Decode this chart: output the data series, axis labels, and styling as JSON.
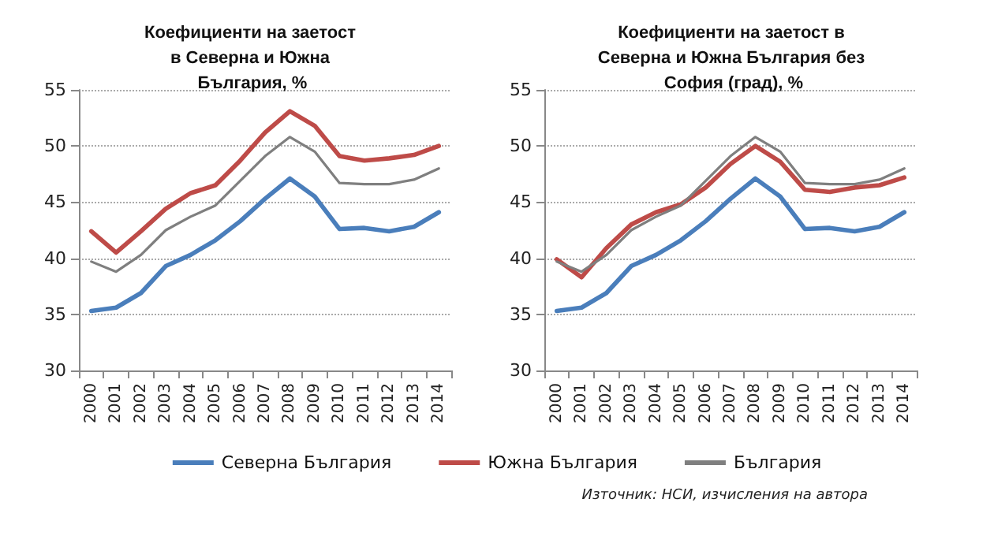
{
  "chart_data": [
    {
      "type": "line",
      "title": "Коефициенти на заетост в Северна и Южна България, %",
      "categories": [
        "2000",
        "2001",
        "2002",
        "2003",
        "2004",
        "2005",
        "2006",
        "2007",
        "2008",
        "2009",
        "2010",
        "2011",
        "2012",
        "2013",
        "2014"
      ],
      "ylim": [
        30,
        55
      ],
      "yticks": [
        30,
        35,
        40,
        45,
        50,
        55
      ],
      "grid": "y",
      "legend": "bottom",
      "marker": "none",
      "annotations": [
        "Източник: НСИ, изчисления на автора"
      ],
      "series": [
        {
          "name": "Северна България",
          "color": "#4a7ebb",
          "values": [
            35.3,
            35.6,
            36.9,
            39.3,
            40.3,
            41.6,
            43.3,
            45.3,
            47.1,
            45.5,
            42.6,
            42.7,
            42.4,
            42.8,
            44.1
          ]
        },
        {
          "name": "Южна България",
          "color": "#be4b48",
          "values": [
            42.4,
            40.5,
            42.4,
            44.4,
            45.8,
            46.5,
            48.7,
            51.2,
            53.1,
            51.8,
            49.1,
            48.7,
            48.9,
            49.2,
            50.0
          ]
        },
        {
          "name": "България",
          "color": "#7f7f7f",
          "values": [
            39.7,
            38.8,
            40.3,
            42.5,
            43.7,
            44.7,
            46.9,
            49.1,
            50.8,
            49.5,
            46.7,
            46.6,
            46.6,
            47.0,
            48.0
          ]
        }
      ]
    },
    {
      "type": "line",
      "title": "Коефициенти на заетост в Северна и Южна България без София (град), %",
      "categories": [
        "2000",
        "2001",
        "2002",
        "2003",
        "2004",
        "2005",
        "2006",
        "2007",
        "2008",
        "2009",
        "2010",
        "2011",
        "2012",
        "2013",
        "2014"
      ],
      "ylim": [
        30,
        55
      ],
      "yticks": [
        30,
        35,
        40,
        45,
        50,
        55
      ],
      "grid": "y",
      "legend": false,
      "marker": "none",
      "series": [
        {
          "color": "#4a7ebb",
          "values": [
            35.3,
            35.6,
            36.9,
            39.3,
            40.3,
            41.6,
            43.3,
            45.3,
            47.1,
            45.5,
            42.6,
            42.7,
            42.4,
            42.8,
            44.1
          ]
        },
        {
          "color": "#be4b48",
          "values": [
            39.9,
            38.3,
            40.9,
            43.0,
            44.1,
            44.8,
            46.3,
            48.4,
            50.0,
            48.6,
            46.1,
            45.9,
            46.3,
            46.5,
            47.2
          ]
        },
        {
          "color": "#7f7f7f",
          "values": [
            39.7,
            38.8,
            40.3,
            42.5,
            43.7,
            44.7,
            46.9,
            49.1,
            50.8,
            49.5,
            46.7,
            46.6,
            46.6,
            47.0,
            48.0
          ]
        }
      ]
    }
  ]
}
